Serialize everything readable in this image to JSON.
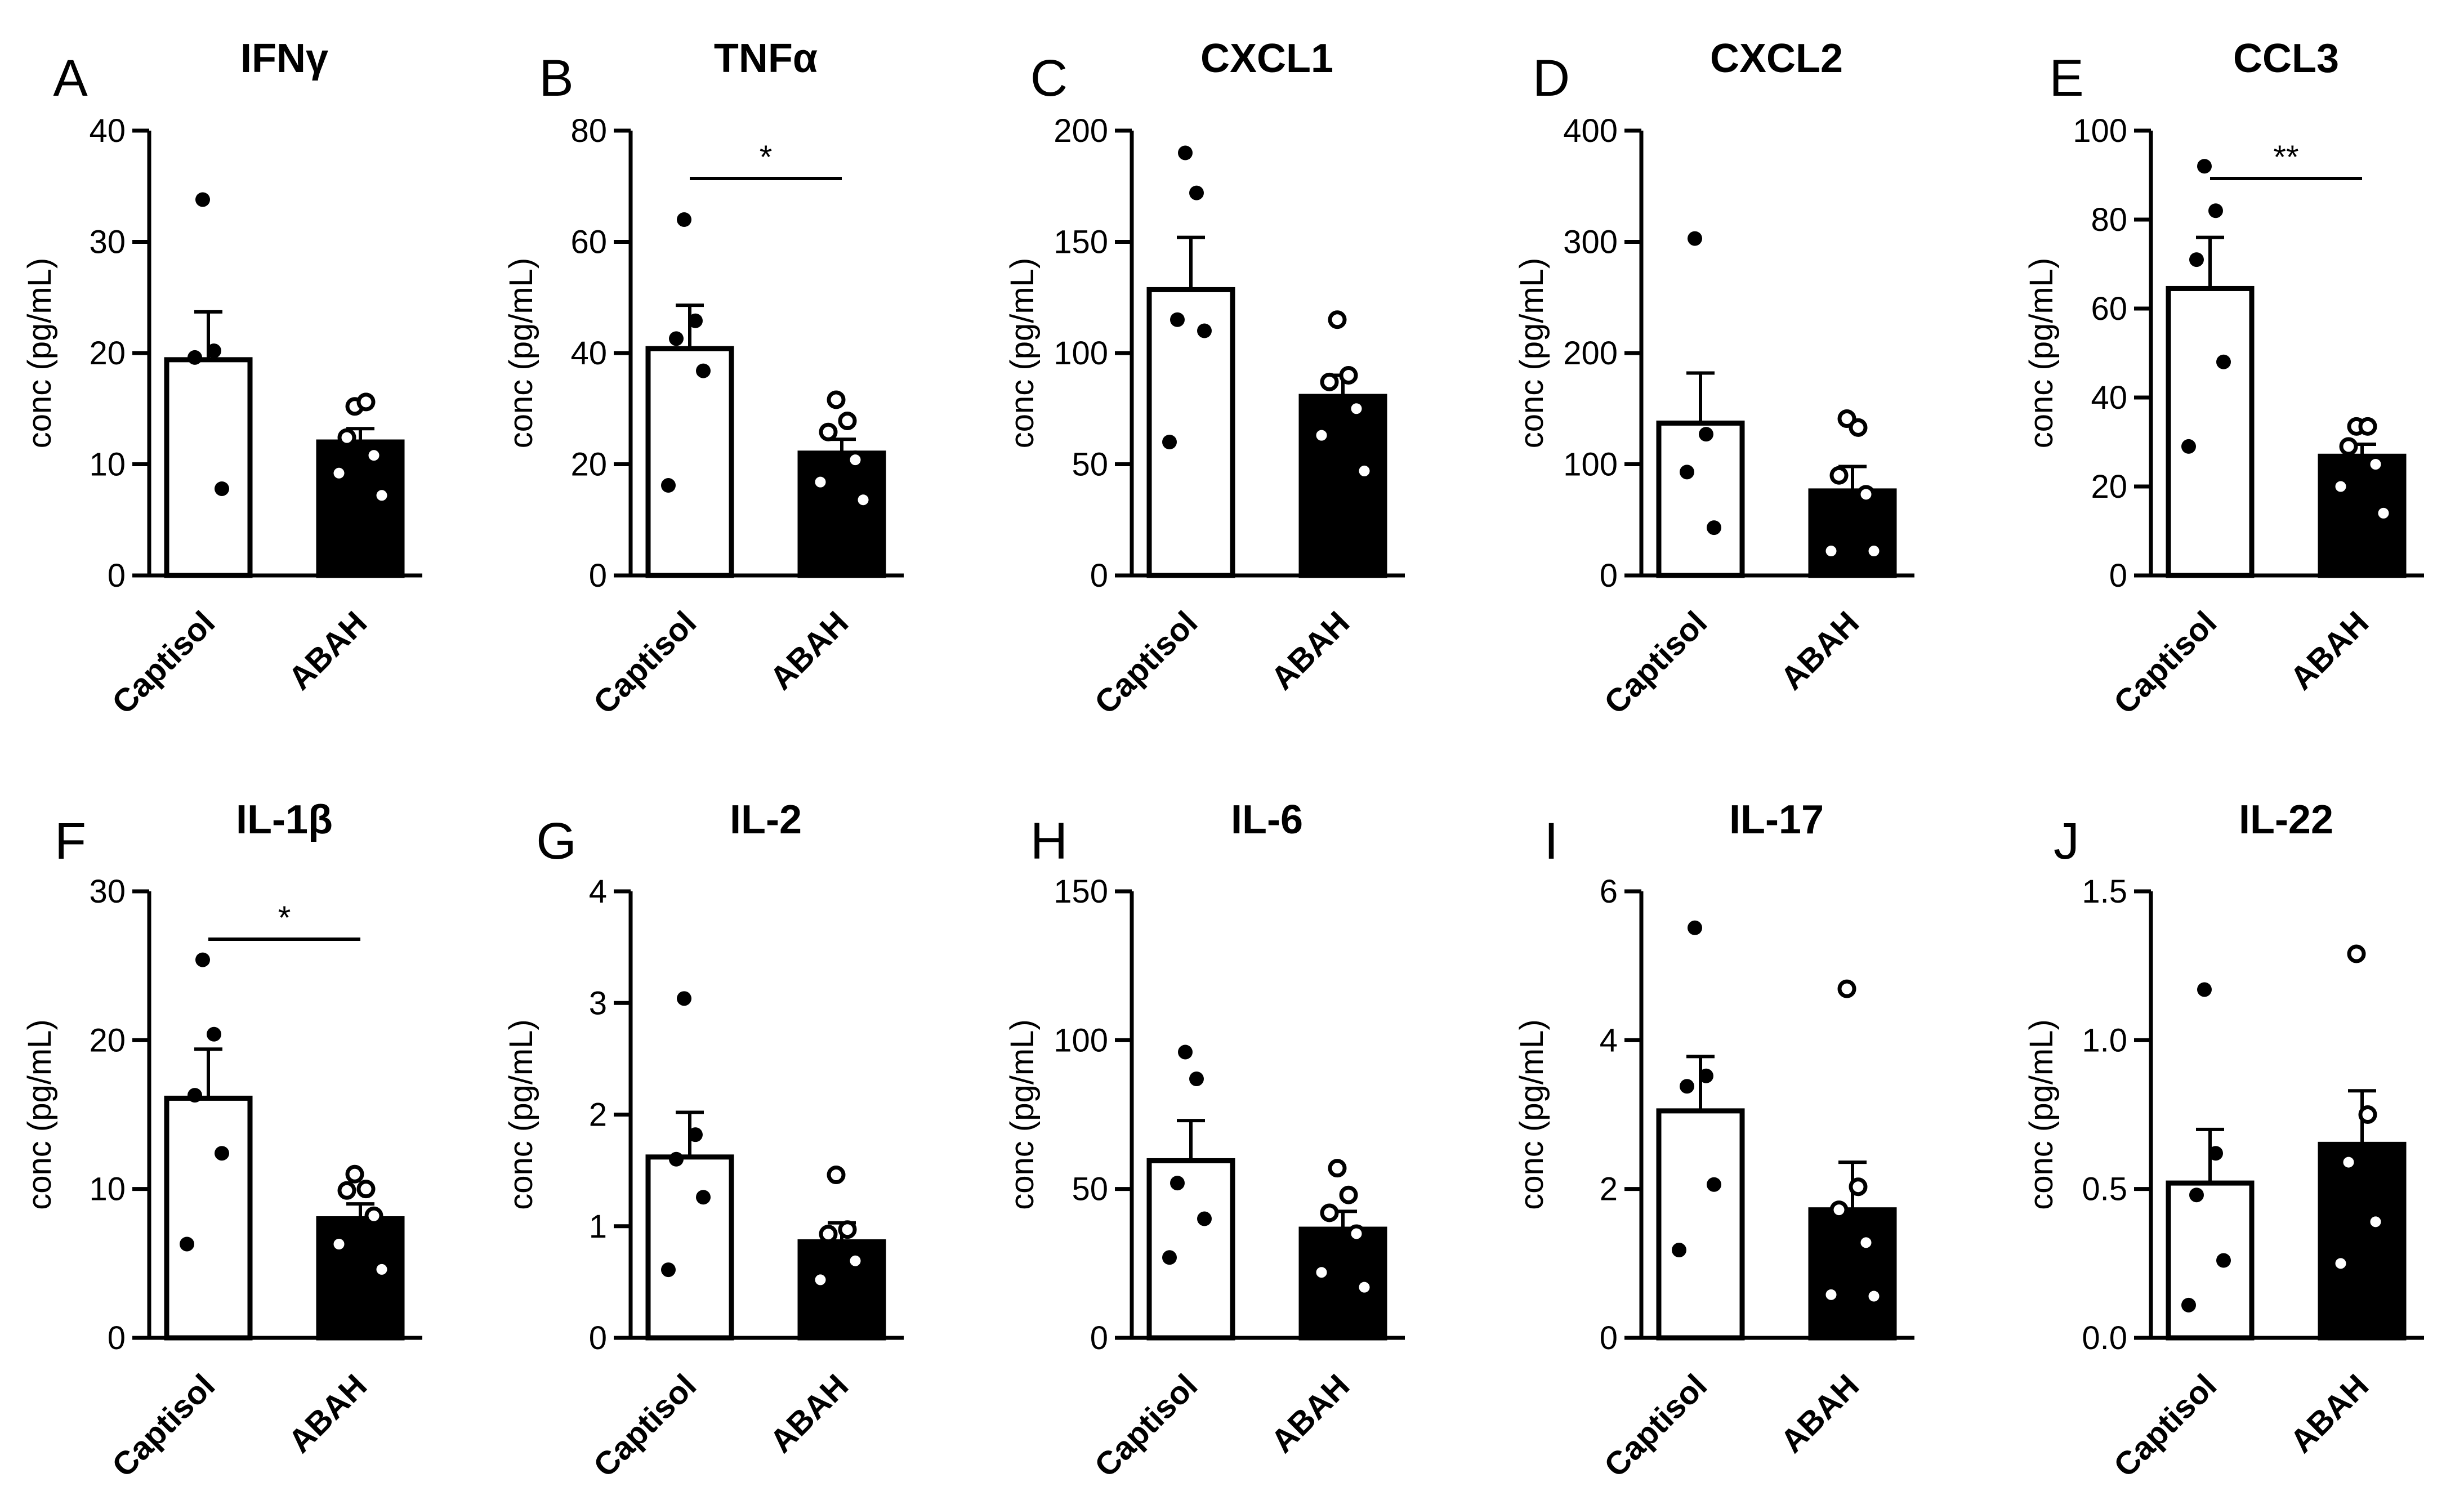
{
  "colors": {
    "fill_captisol": "#ffffff",
    "fill_abah": "#000000",
    "stroke": "#000000"
  },
  "chart_data": [
    {
      "type": "bar",
      "panel": "A",
      "title": "IFNγ",
      "ylabel": "conc (pg/mL)",
      "ylim": [
        0,
        40
      ],
      "yticks": [
        "0",
        "10",
        "20",
        "30",
        "40"
      ],
      "categories": [
        "Captisol",
        "ABAH"
      ],
      "series": [
        {
          "name": "Captisol",
          "mean": 19.4,
          "sem": 4.3,
          "points": [
            33.8,
            20.2,
            19.6,
            7.8
          ]
        },
        {
          "name": "ABAH",
          "mean": 12.0,
          "sem": 1.2,
          "points": [
            15.2,
            15.6,
            12.4,
            10.8,
            9.2,
            7.2
          ]
        }
      ],
      "significance": null
    },
    {
      "type": "bar",
      "panel": "B",
      "title": "TNFα",
      "ylabel": "conc (pg/mL)",
      "ylim": [
        0,
        80
      ],
      "yticks": [
        "0",
        "20",
        "40",
        "60",
        "80"
      ],
      "categories": [
        "Captisol",
        "ABAH"
      ],
      "series": [
        {
          "name": "Captisol",
          "mean": 40.8,
          "sem": 7.8,
          "points": [
            64.0,
            45.8,
            42.6,
            36.8,
            16.2
          ]
        },
        {
          "name": "ABAH",
          "mean": 22.0,
          "sem": 2.5,
          "points": [
            31.6,
            27.8,
            25.8,
            20.8,
            16.8,
            13.6
          ]
        }
      ],
      "significance": "*"
    },
    {
      "type": "bar",
      "panel": "C",
      "title": "CXCL1",
      "ylabel": "conc (pg/mL)",
      "ylim": [
        0,
        200
      ],
      "yticks": [
        "0",
        "50",
        "100",
        "150",
        "200"
      ],
      "categories": [
        "Captisol",
        "ABAH"
      ],
      "series": [
        {
          "name": "Captisol",
          "mean": 128.5,
          "sem": 23.5,
          "points": [
            190,
            172,
            115,
            110,
            60
          ]
        },
        {
          "name": "ABAH",
          "mean": 80.5,
          "sem": 9.5,
          "points": [
            115,
            90,
            87,
            75,
            63,
            47
          ]
        }
      ],
      "significance": null
    },
    {
      "type": "bar",
      "panel": "D",
      "title": "CXCL2",
      "ylabel": "conc (pg/mL)",
      "ylim": [
        0,
        400
      ],
      "yticks": [
        "0",
        "100",
        "200",
        "300",
        "400"
      ],
      "categories": [
        "Captisol",
        "ABAH"
      ],
      "series": [
        {
          "name": "Captisol",
          "mean": 137,
          "sem": 45,
          "points": [
            303,
            127,
            93,
            43
          ]
        },
        {
          "name": "ABAH",
          "mean": 76,
          "sem": 22,
          "points": [
            141,
            133,
            90,
            73,
            22,
            22
          ]
        }
      ],
      "significance": null
    },
    {
      "type": "bar",
      "panel": "E",
      "title": "CCL3",
      "ylabel": "conc (pg/mL)",
      "ylim": [
        0,
        100
      ],
      "yticks": [
        "0",
        "20",
        "40",
        "60",
        "80",
        "100"
      ],
      "categories": [
        "Captisol",
        "ABAH"
      ],
      "series": [
        {
          "name": "Captisol",
          "mean": 64.5,
          "sem": 11.5,
          "points": [
            92,
            82,
            71,
            48,
            29
          ]
        },
        {
          "name": "ABAH",
          "mean": 26.8,
          "sem": 2.7,
          "points": [
            33.5,
            33.5,
            29,
            25,
            20,
            14
          ]
        }
      ],
      "significance": "**"
    },
    {
      "type": "bar",
      "panel": "F",
      "title": "IL-1β",
      "ylabel": "conc (pg/mL)",
      "ylim": [
        0,
        30
      ],
      "yticks": [
        "0",
        "10",
        "20",
        "30"
      ],
      "categories": [
        "Captisol",
        "ABAH"
      ],
      "series": [
        {
          "name": "Captisol",
          "mean": 16.1,
          "sem": 3.3,
          "points": [
            25.4,
            20.4,
            16.3,
            12.4,
            6.3
          ]
        },
        {
          "name": "ABAH",
          "mean": 8.0,
          "sem": 1.0,
          "points": [
            11.0,
            10.0,
            9.9,
            8.2,
            6.3,
            4.6
          ]
        }
      ],
      "significance": "*"
    },
    {
      "type": "bar",
      "panel": "G",
      "title": "IL-2",
      "ylabel": "conc (pg/mL)",
      "ylim": [
        0,
        4
      ],
      "yticks": [
        "0",
        "1",
        "2",
        "3",
        "4"
      ],
      "categories": [
        "Captisol",
        "ABAH"
      ],
      "series": [
        {
          "name": "Captisol",
          "mean": 1.62,
          "sem": 0.4,
          "points": [
            3.04,
            1.82,
            1.6,
            1.26,
            0.61
          ]
        },
        {
          "name": "ABAH",
          "mean": 0.86,
          "sem": 0.17,
          "points": [
            1.46,
            0.97,
            0.93,
            0.69,
            0.52
          ]
        }
      ],
      "significance": null
    },
    {
      "type": "bar",
      "panel": "H",
      "title": "IL-6",
      "ylabel": "conc (pg/mL)",
      "ylim": [
        0,
        150
      ],
      "yticks": [
        "0",
        "50",
        "100",
        "150"
      ],
      "categories": [
        "Captisol",
        "ABAH"
      ],
      "series": [
        {
          "name": "Captisol",
          "mean": 59.5,
          "sem": 13.5,
          "points": [
            96,
            87,
            52,
            40,
            27
          ]
        },
        {
          "name": "ABAH",
          "mean": 36.5,
          "sem": 6.0,
          "points": [
            57,
            48,
            42,
            35,
            22,
            17
          ]
        }
      ],
      "significance": null
    },
    {
      "type": "bar",
      "panel": "I",
      "title": "IL-17",
      "ylabel": "conc (pg/mL)",
      "ylim": [
        0,
        6
      ],
      "yticks": [
        "0",
        "2",
        "4",
        "6"
      ],
      "categories": [
        "Captisol",
        "ABAH"
      ],
      "series": [
        {
          "name": "Captisol",
          "mean": 3.05,
          "sem": 0.73,
          "points": [
            5.51,
            3.52,
            3.38,
            2.06,
            1.18
          ]
        },
        {
          "name": "ABAH",
          "mean": 1.72,
          "sem": 0.64,
          "points": [
            4.69,
            2.03,
            1.72,
            1.28,
            0.58,
            0.56
          ]
        }
      ],
      "significance": null
    },
    {
      "type": "bar",
      "panel": "J",
      "title": "IL-22",
      "ylabel": "conc (pg/mL)",
      "ylim": [
        0,
        1.5
      ],
      "yticks": [
        "0.0",
        "0.5",
        "1.0",
        "1.5"
      ],
      "categories": [
        "Captisol",
        "ABAH"
      ],
      "series": [
        {
          "name": "Captisol",
          "mean": 0.52,
          "sem": 0.18,
          "points": [
            1.17,
            0.62,
            0.48,
            0.26,
            0.11
          ]
        },
        {
          "name": "ABAH",
          "mean": 0.65,
          "sem": 0.18,
          "points": [
            1.29,
            0.75,
            0.59,
            0.39,
            0.25
          ]
        }
      ],
      "significance": null
    }
  ]
}
